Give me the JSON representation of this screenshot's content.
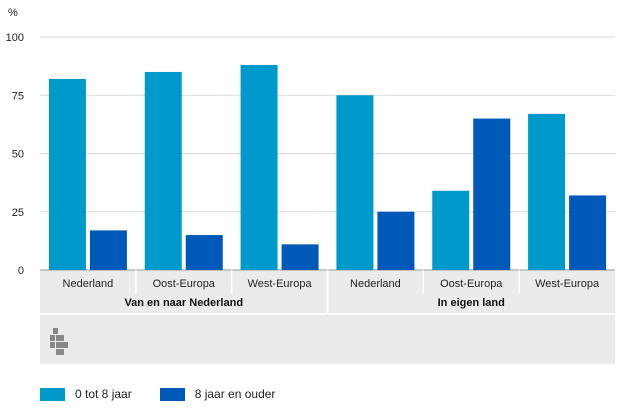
{
  "chart_data": {
    "type": "bar",
    "ylabel": "%",
    "ylim": [
      0,
      100
    ],
    "yticks": [
      0,
      25,
      50,
      75,
      100
    ],
    "grid": true,
    "categories": [
      "Nederland",
      "Oost-Europa",
      "West-Europa",
      "Nederland",
      "Oost-Europa",
      "West-Europa"
    ],
    "groups": [
      {
        "label": "Van en naar Nederland",
        "span": [
          0,
          2
        ]
      },
      {
        "label": "In eigen land",
        "span": [
          3,
          5
        ]
      }
    ],
    "series": [
      {
        "name": "0 tot 8 jaar",
        "color": "#0099cc",
        "values": [
          82,
          85,
          88,
          75,
          34,
          67
        ]
      },
      {
        "name": "8 jaar en ouder",
        "color": "#0058b8",
        "values": [
          17,
          15,
          11,
          25,
          65,
          32
        ]
      }
    ],
    "legend_position": "bottom-left",
    "logo": "cbs-logo-icon"
  }
}
